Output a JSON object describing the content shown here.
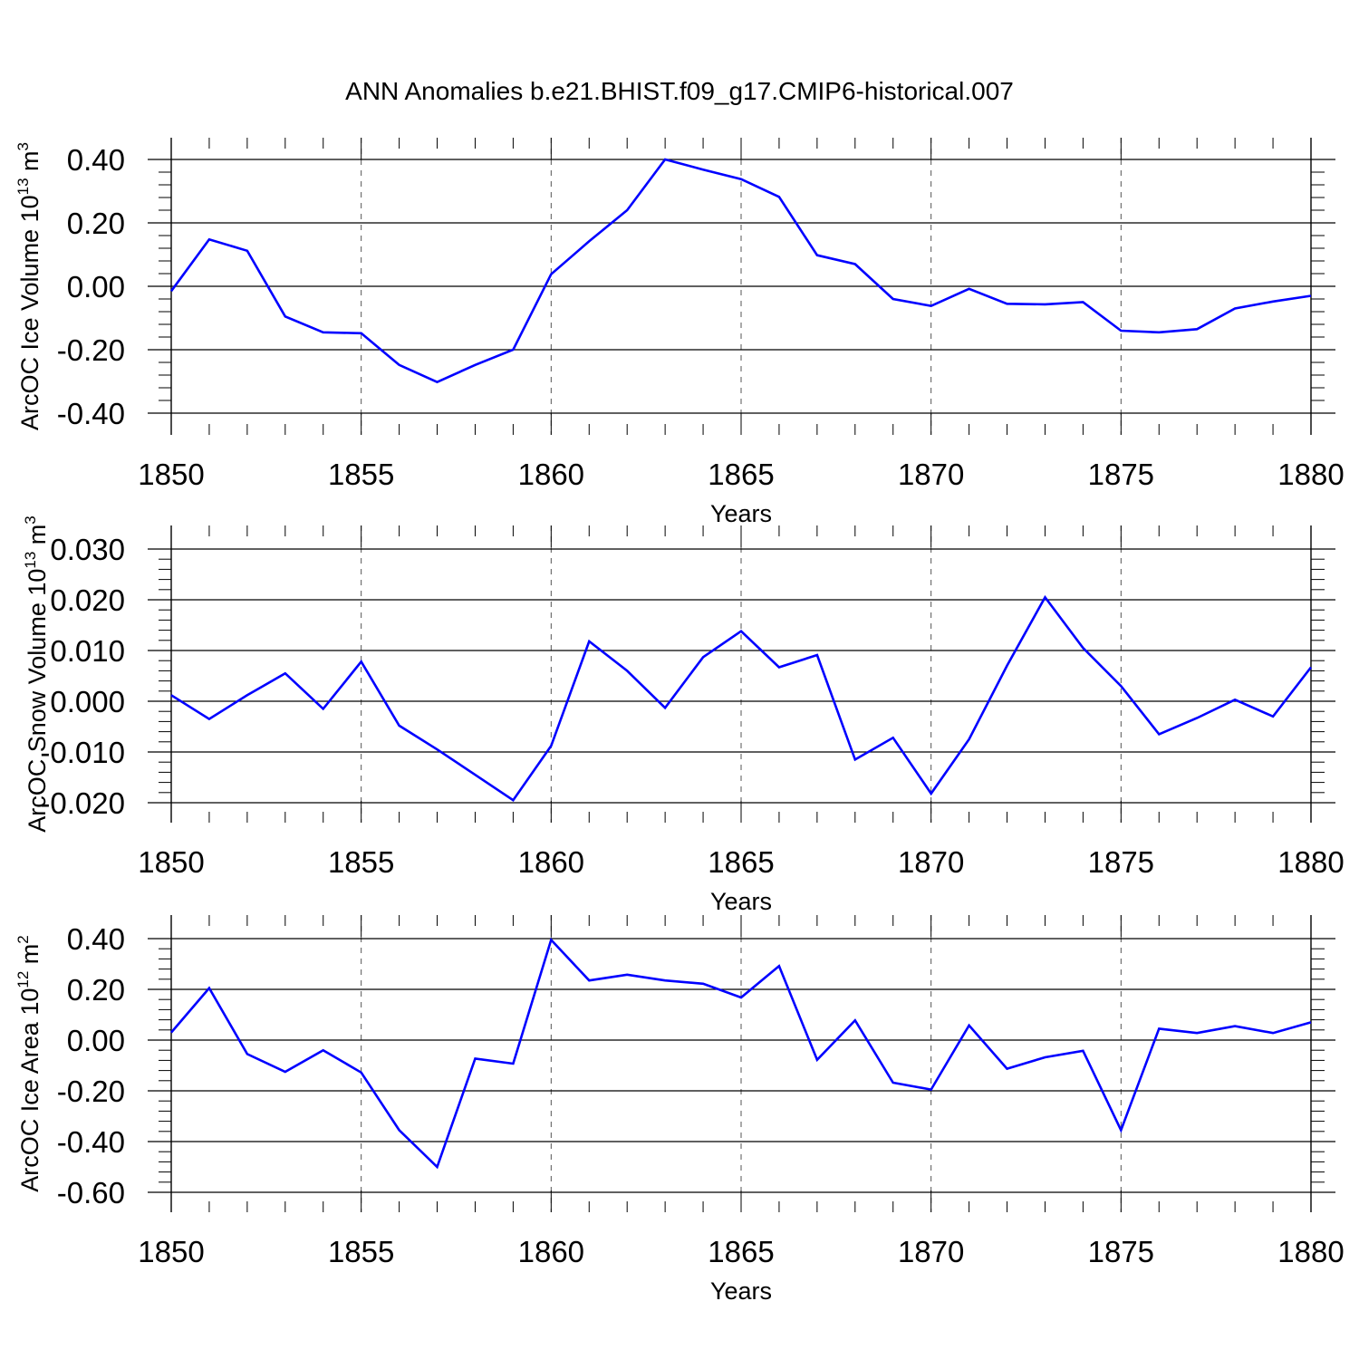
{
  "chart_data": {
    "title": "ANN Anomalies b.e21.BHIST.f09_g17.CMIP6-historical.007",
    "line_color": "#0000ff",
    "panels": [
      {
        "type": "line",
        "ylabel": {
          "main": "ArcOC Ice Volume 10",
          "exp": "13",
          "unit": "m",
          "unit_exp": "3"
        },
        "xlabel": "Years",
        "xlim": [
          1850,
          1880
        ],
        "ylim": [
          -0.4,
          0.4
        ],
        "x_ticks": [
          "1850",
          "1855",
          "1860",
          "1865",
          "1870",
          "1875",
          "1880"
        ],
        "y_ticks": [
          "-0.40",
          "-0.20",
          "0.00",
          "0.20",
          "0.40"
        ],
        "x": [
          1850,
          1851,
          1852,
          1853,
          1854,
          1855,
          1856,
          1857,
          1858,
          1859,
          1860,
          1861,
          1862,
          1863,
          1864,
          1865,
          1866,
          1867,
          1868,
          1869,
          1870,
          1871,
          1872,
          1873,
          1874,
          1875,
          1876,
          1877,
          1878,
          1879,
          1880
        ],
        "y": [
          -0.015,
          0.148,
          0.112,
          -0.095,
          -0.145,
          -0.148,
          -0.248,
          -0.302,
          -0.248,
          -0.2,
          0.038,
          0.142,
          0.24,
          0.4,
          0.368,
          0.338,
          0.282,
          0.098,
          0.07,
          -0.04,
          -0.062,
          -0.008,
          -0.055,
          -0.057,
          -0.05,
          -0.14,
          -0.145,
          -0.135,
          -0.07,
          -0.048,
          -0.03
        ]
      },
      {
        "type": "line",
        "ylabel": {
          "main": "ArcOC Snow Volume 10",
          "exp": "13",
          "unit": "m",
          "unit_exp": "3"
        },
        "xlabel": "Years",
        "xlim": [
          1850,
          1880
        ],
        "ylim": [
          -0.02,
          0.03
        ],
        "x_ticks": [
          "1850",
          "1855",
          "1860",
          "1865",
          "1870",
          "1875",
          "1880"
        ],
        "y_ticks": [
          "-0.020",
          "-0.010",
          "0.000",
          "0.010",
          "0.020",
          "0.030"
        ],
        "x": [
          1850,
          1851,
          1852,
          1853,
          1854,
          1855,
          1856,
          1857,
          1858,
          1859,
          1860,
          1861,
          1862,
          1863,
          1864,
          1865,
          1866,
          1867,
          1868,
          1869,
          1870,
          1871,
          1872,
          1873,
          1874,
          1875,
          1876,
          1877,
          1878,
          1879,
          1880
        ],
        "y": [
          0.0012,
          -0.0035,
          0.0012,
          0.0055,
          -0.0015,
          0.0078,
          -0.0048,
          -0.0095,
          -0.0145,
          -0.0195,
          -0.0088,
          0.0118,
          0.006,
          -0.0013,
          0.0087,
          0.0138,
          0.0067,
          0.0091,
          -0.0115,
          -0.0072,
          -0.0182,
          -0.0075,
          0.007,
          0.0205,
          0.0105,
          0.003,
          -0.0065,
          -0.0033,
          0.0003,
          -0.003,
          0.0067
        ]
      },
      {
        "type": "line",
        "ylabel": {
          "main": "ArcOC Ice Area 10",
          "exp": "12",
          "unit": "m",
          "unit_exp": "2"
        },
        "xlabel": "Years",
        "xlim": [
          1850,
          1880
        ],
        "ylim": [
          -0.6,
          0.4
        ],
        "x_ticks": [
          "1850",
          "1855",
          "1860",
          "1865",
          "1870",
          "1875",
          "1880"
        ],
        "y_ticks": [
          "-0.60",
          "-0.40",
          "-0.20",
          "0.00",
          "0.20",
          "0.40"
        ],
        "x": [
          1850,
          1851,
          1852,
          1853,
          1854,
          1855,
          1856,
          1857,
          1858,
          1859,
          1860,
          1861,
          1862,
          1863,
          1864,
          1865,
          1866,
          1867,
          1868,
          1869,
          1870,
          1871,
          1872,
          1873,
          1874,
          1875,
          1876,
          1877,
          1878,
          1879,
          1880
        ],
        "y": [
          0.03,
          0.205,
          -0.055,
          -0.125,
          -0.04,
          -0.128,
          -0.355,
          -0.5,
          -0.073,
          -0.093,
          0.395,
          0.235,
          0.258,
          0.235,
          0.222,
          0.168,
          0.292,
          -0.078,
          0.078,
          -0.168,
          -0.195,
          0.058,
          -0.113,
          -0.068,
          -0.042,
          -0.355,
          0.045,
          0.028,
          0.055,
          0.028,
          0.07
        ]
      }
    ]
  }
}
